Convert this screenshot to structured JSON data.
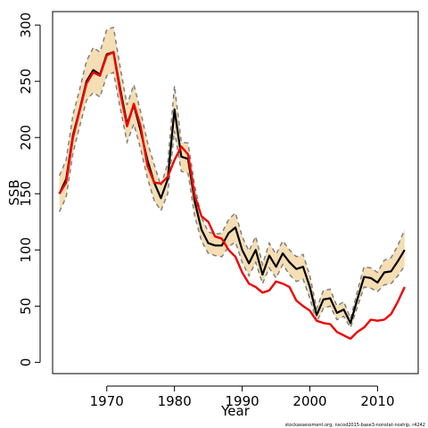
{
  "chart_data": {
    "type": "line",
    "xlabel": "Year",
    "ylabel": "SSB",
    "xlim": [
      1962,
      2016
    ],
    "ylim": [
      -10,
      312
    ],
    "x_ticks": [
      1970,
      1980,
      1990,
      2000,
      2010
    ],
    "y_ticks": [
      0,
      50,
      100,
      150,
      200,
      250,
      300
    ],
    "grid": false,
    "credit": "stockassessment.org, nscod2015-base3-nonstat-noship, r4242",
    "colors": {
      "band_fill": "#f5deb3",
      "band_edge": "#808080",
      "estimate": "#000000",
      "comparison": "#ee0000"
    },
    "series": [
      {
        "x": [
          1963,
          1964,
          1965,
          1966,
          1967,
          1968,
          1969,
          1970,
          1971,
          1972,
          1973,
          1974,
          1975,
          1976,
          1977,
          1978,
          1979,
          1980,
          1981,
          1982,
          1983,
          1984,
          1985,
          1986,
          1987,
          1988,
          1989,
          1990,
          1991,
          1992,
          1993,
          1994,
          1995,
          1996,
          1997,
          1998,
          1999,
          2000,
          2001,
          2002,
          2003,
          2004,
          2005,
          2006,
          2007,
          2008,
          2009,
          2010,
          2011,
          2012,
          2013,
          2014
        ],
        "estimate": [
          150,
          163,
          202,
          225,
          250,
          260,
          256,
          274,
          276,
          243,
          212,
          229,
          206,
          180,
          160,
          146,
          163,
          225,
          183,
          181,
          143,
          118,
          106,
          104,
          104,
          115,
          120,
          100,
          88,
          100,
          78,
          95,
          85,
          97,
          89,
          83,
          85,
          67,
          42,
          56,
          57,
          44,
          47,
          35,
          56,
          76,
          75,
          71,
          80,
          81,
          90,
          100
        ],
        "lower": [
          134,
          147,
          186,
          210,
          233,
          240,
          236,
          255,
          258,
          226,
          196,
          212,
          190,
          164,
          144,
          135,
          150,
          206,
          170,
          168,
          130,
          108,
          97,
          95,
          94,
          103,
          107,
          89,
          77,
          89,
          70,
          84,
          75,
          87,
          78,
          72,
          74,
          57,
          36,
          48,
          50,
          38,
          41,
          31,
          49,
          67,
          66,
          63,
          69,
          70,
          77,
          86
        ],
        "upper": [
          166,
          180,
          220,
          243,
          268,
          280,
          276,
          296,
          298,
          262,
          229,
          247,
          223,
          196,
          176,
          157,
          177,
          246,
          196,
          195,
          157,
          129,
          116,
          114,
          115,
          127,
          133,
          112,
          99,
          112,
          87,
          106,
          96,
          108,
          100,
          94,
          96,
          77,
          48,
          64,
          65,
          50,
          54,
          39,
          63,
          85,
          84,
          80,
          91,
          93,
          104,
          118
        ],
        "comparison": [
          150,
          160,
          200,
          224,
          248,
          258,
          255,
          273,
          276,
          240,
          210,
          230,
          210,
          175,
          160,
          159,
          165,
          180,
          192,
          185,
          148,
          130,
          125,
          112,
          110,
          100,
          94,
          80,
          70,
          67,
          62,
          64,
          72,
          70,
          67,
          55,
          50,
          46,
          37,
          35,
          34,
          27,
          24,
          21,
          27,
          31,
          38,
          37,
          38,
          43,
          54,
          67
        ]
      }
    ]
  }
}
